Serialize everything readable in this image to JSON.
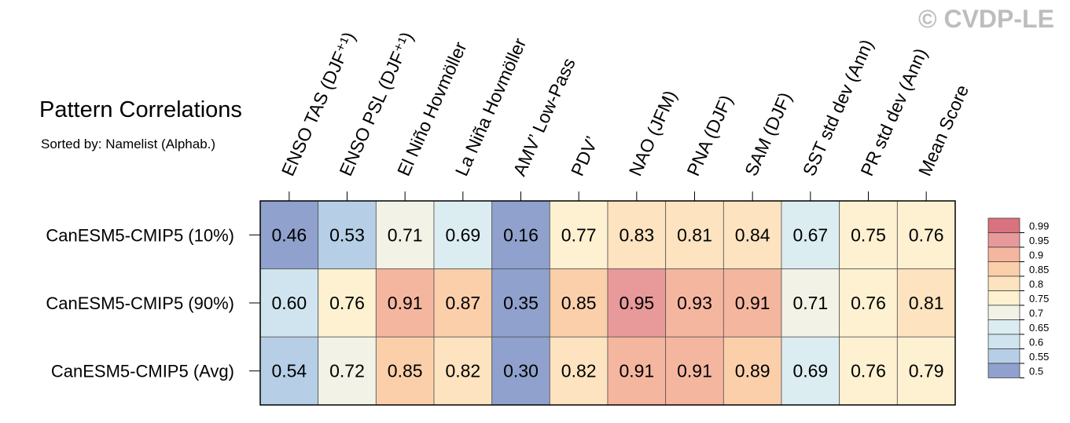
{
  "watermark": "© CVDP-LE",
  "title": "Pattern Correlations",
  "subtitle": "Sorted by: Namelist (Alphab.)",
  "chart_data": {
    "type": "heatmap",
    "columns": [
      "ENSO TAS (DJF⁺¹)",
      "ENSO PSL (DJF⁺¹)",
      "El Niño Hovmöller",
      "La Niña Hovmöller",
      "AMV’ Low-Pass",
      "PDV’",
      "NAO (JFM)",
      "PNA (DJF)",
      "SAM (DJF)",
      "SST std dev (Ann)",
      "PR std dev (Ann)",
      "Mean Score"
    ],
    "rows": [
      "CanESM5-CMIP5 (10%)",
      "CanESM5-CMIP5 (90%)",
      "CanESM5-CMIP5 (Avg)"
    ],
    "values": [
      [
        0.46,
        0.53,
        0.71,
        0.69,
        0.16,
        0.77,
        0.83,
        0.81,
        0.84,
        0.67,
        0.75,
        0.76
      ],
      [
        0.6,
        0.76,
        0.91,
        0.87,
        0.35,
        0.85,
        0.95,
        0.93,
        0.91,
        0.71,
        0.76,
        0.81
      ],
      [
        0.54,
        0.72,
        0.85,
        0.82,
        0.3,
        0.82,
        0.91,
        0.91,
        0.89,
        0.69,
        0.76,
        0.79
      ]
    ],
    "legend": {
      "labels": [
        "0.99",
        "0.95",
        "0.9",
        "0.85",
        "0.8",
        "0.75",
        "0.7",
        "0.65",
        "0.6",
        "0.55",
        "0.5"
      ],
      "colors": [
        "#d8737f",
        "#e8999a",
        "#f5b69f",
        "#fccfab",
        "#fde3bf",
        "#fdf1d1",
        "#f2f2e6",
        "#dcedf2",
        "#cfe4ef",
        "#b6cfe6",
        "#8fa1cc"
      ],
      "placement": "right"
    },
    "cell_colors": [
      [
        "#8fa1cc",
        "#b6cfe6",
        "#f2f2e6",
        "#dcedf2",
        "#8fa1cc",
        "#fdf1d1",
        "#fde3bf",
        "#fde3bf",
        "#fde3bf",
        "#dcedf2",
        "#fdf1d1",
        "#fdf1d1"
      ],
      [
        "#cfe4ef",
        "#fdf1d1",
        "#f5b69f",
        "#fccfab",
        "#8fa1cc",
        "#fccfab",
        "#e8999a",
        "#f5b69f",
        "#f5b69f",
        "#f2f2e6",
        "#fdf1d1",
        "#fde3bf"
      ],
      [
        "#b6cfe6",
        "#f2f2e6",
        "#fccfab",
        "#fde3bf",
        "#8fa1cc",
        "#fde3bf",
        "#f5b69f",
        "#f5b69f",
        "#fccfab",
        "#dcedf2",
        "#fdf1d1",
        "#fdf1d1"
      ]
    ]
  }
}
